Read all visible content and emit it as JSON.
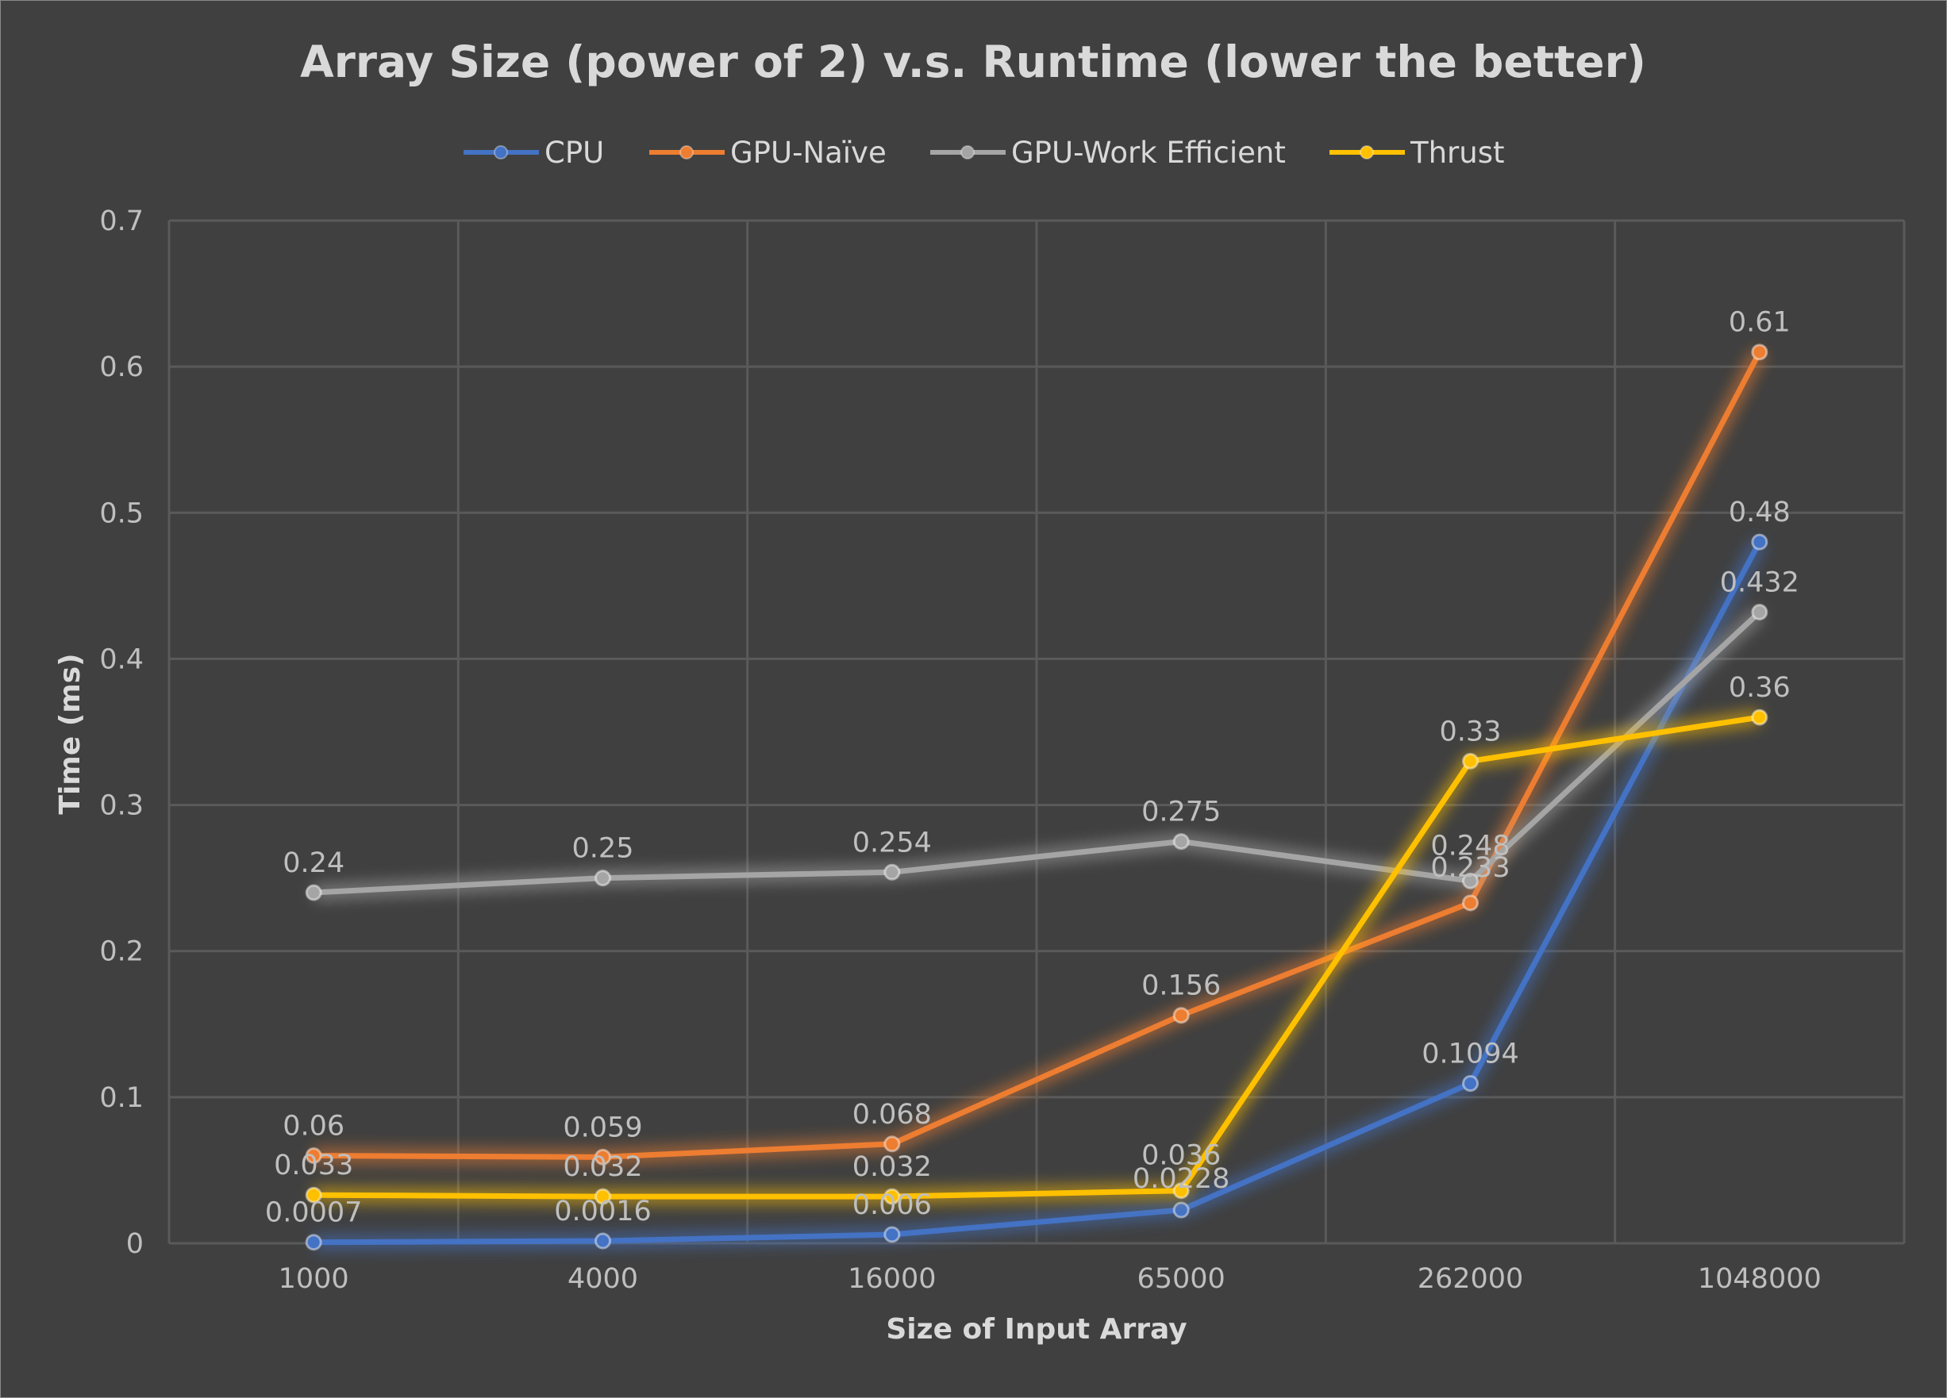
{
  "chart_data": {
    "type": "line",
    "title": "Array Size (power of 2) v.s. Runtime (lower the better)",
    "xlabel": "Size of Input Array",
    "ylabel": "Time (ms)",
    "categories": [
      "1000",
      "4000",
      "16000",
      "65000",
      "262000",
      "1048000"
    ],
    "ylim": [
      0,
      0.7
    ],
    "yticks": [
      "0",
      "0.1",
      "0.2",
      "0.3",
      "0.4",
      "0.5",
      "0.6",
      "0.7"
    ],
    "grid": true,
    "legend_position": "top",
    "series": [
      {
        "name": "CPU",
        "color": "#4472c4",
        "values": [
          0.0007,
          0.0016,
          0.006,
          0.0228,
          0.1094,
          0.48
        ],
        "labels": [
          "0.0007",
          "0.0016",
          "0.006",
          "0.0228",
          "0.1094",
          "0.48"
        ]
      },
      {
        "name": "GPU-Naïve",
        "color": "#ed7d31",
        "values": [
          0.06,
          0.059,
          0.068,
          0.156,
          0.233,
          0.61
        ],
        "labels": [
          "0.06",
          "0.059",
          "0.068",
          "0.156",
          "0.233",
          "0.61"
        ]
      },
      {
        "name": "GPU-Work Efficient",
        "color": "#a5a5a5",
        "values": [
          0.24,
          0.25,
          0.254,
          0.275,
          0.248,
          0.432
        ],
        "labels": [
          "0.24",
          "0.25",
          "0.254",
          "0.275",
          "0.248",
          "0.432"
        ]
      },
      {
        "name": "Thrust",
        "color": "#ffc000",
        "values": [
          0.033,
          0.032,
          0.032,
          0.036,
          0.33,
          0.36
        ],
        "labels": [
          "0.033",
          "0.032",
          "0.032",
          "0.036",
          "0.33",
          "0.36"
        ]
      }
    ]
  }
}
